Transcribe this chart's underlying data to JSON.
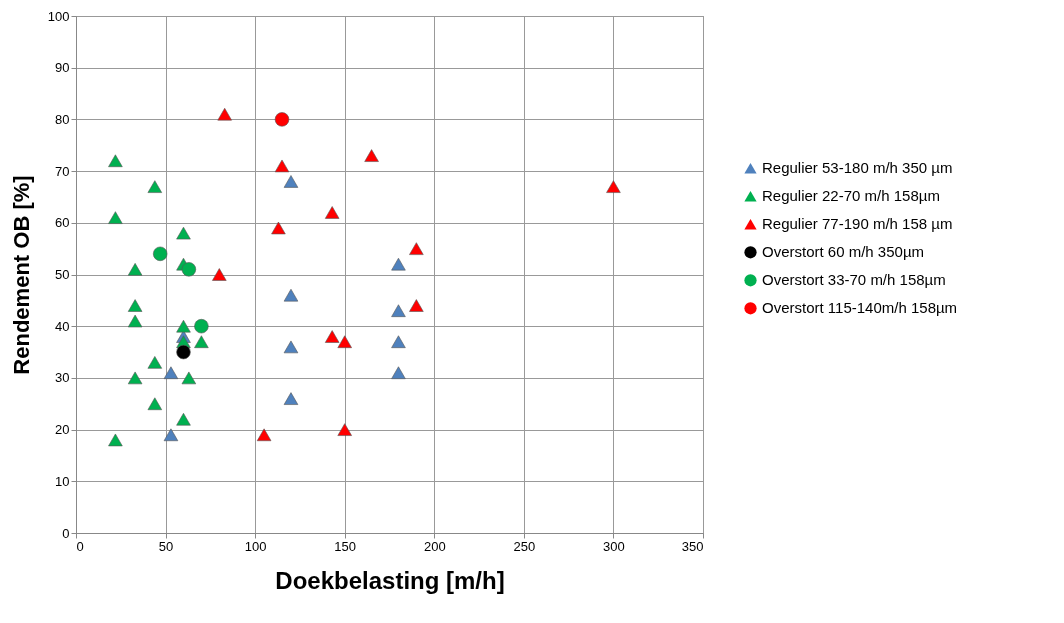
{
  "chart_data": {
    "type": "scatter",
    "xlabel": "Doekbelasting  [m/h]",
    "ylabel": "Rendement OB  [%]",
    "xlim": [
      0,
      350
    ],
    "xticks": [
      0,
      50,
      100,
      150,
      200,
      250,
      300,
      350
    ],
    "ylim": [
      0,
      100
    ],
    "yticks": [
      0,
      10,
      20,
      30,
      40,
      50,
      60,
      70,
      80,
      90,
      100
    ],
    "grid": true,
    "legend": "right",
    "series": [
      {
        "name": "Regulier 53-180 m/h 350 µm",
        "color": "#4f81bd",
        "marker": "triangle",
        "x": [
          120,
          120,
          120,
          120,
          180,
          180,
          180,
          180,
          53,
          53,
          60
        ],
        "values": [
          68,
          46,
          36,
          26,
          52,
          43,
          37,
          31,
          31,
          19,
          38
        ]
      },
      {
        "name": "Regulier 22-70 m/h 158µm",
        "color": "#00b050",
        "marker": "triangle",
        "x": [
          22,
          22,
          44,
          60,
          33,
          33,
          33,
          44,
          33,
          44,
          22,
          60,
          60,
          70,
          63,
          60,
          60
        ],
        "values": [
          72,
          61,
          67,
          58,
          51,
          44,
          41,
          33,
          30,
          25,
          18,
          40,
          37,
          37,
          30,
          22,
          52
        ]
      },
      {
        "name": "Regulier 77-190 m/h 158 µm",
        "color": "#ff0000",
        "marker": "triangle",
        "x": [
          83,
          115,
          165,
          300,
          113,
          143,
          80,
          190,
          190,
          143,
          150,
          105,
          150
        ],
        "values": [
          81,
          71,
          73,
          67,
          59,
          62,
          50,
          55,
          44,
          38,
          37,
          19,
          20
        ]
      },
      {
        "name": "Overstort 60 m/h 350µm",
        "color": "#000000",
        "marker": "circle",
        "x": [
          60
        ],
        "values": [
          35
        ]
      },
      {
        "name": "Overstort 33-70 m/h 158µm",
        "color": "#00b050",
        "marker": "circle",
        "x": [
          47,
          63,
          70
        ],
        "values": [
          54,
          51,
          40
        ]
      },
      {
        "name": "Overstort 115-140m/h 158µm",
        "color": "#ff0000",
        "marker": "circle",
        "x": [
          115
        ],
        "values": [
          80
        ]
      }
    ]
  }
}
